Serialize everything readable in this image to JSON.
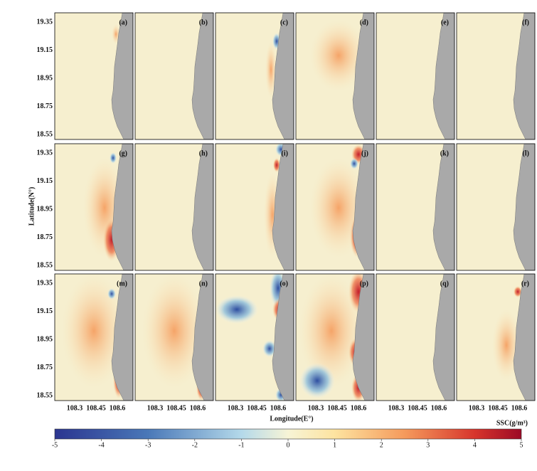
{
  "panels": [
    "(a)",
    "(b)",
    "(c)",
    "(d)",
    "(e)",
    "(f)",
    "(g)",
    "(h)",
    "(i)",
    "(j)",
    "(k)",
    "(l)",
    "(m)",
    "(n)",
    "(o)",
    "(p)",
    "(q)",
    "(r)"
  ],
  "yticks": [
    19.35,
    19.15,
    18.95,
    18.75,
    18.55
  ],
  "xticks": [
    108.3,
    108.45,
    108.6
  ],
  "xlabel": "Longitude(E°)",
  "ylabel": "Latitude(N°)",
  "colorbar": {
    "label": "SSC(g/m³)",
    "range": [
      -5,
      5
    ],
    "ticks": [
      -5,
      -4,
      -3,
      -2,
      -1,
      0,
      1,
      2,
      3,
      4,
      5
    ]
  }
}
